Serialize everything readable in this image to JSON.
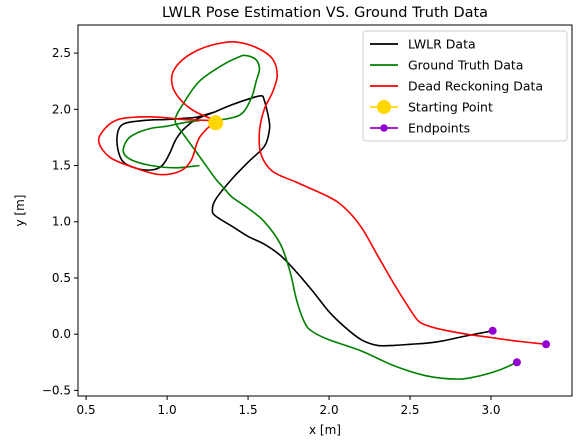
{
  "chart_data": {
    "type": "line",
    "title": "LWLR Pose Estimation VS. Ground Truth Data",
    "xlabel": "x [m]",
    "ylabel": "y [m]",
    "xlim": [
      0.45,
      3.5
    ],
    "ylim": [
      -0.55,
      2.75
    ],
    "xticks": [
      0.5,
      1.0,
      1.5,
      2.0,
      2.5,
      3.0
    ],
    "xtick_labels": [
      "0.5",
      "1.0",
      "1.5",
      "2.0",
      "2.5",
      "3.0"
    ],
    "yticks": [
      -0.5,
      0.0,
      0.5,
      1.0,
      1.5,
      2.0,
      2.5
    ],
    "ytick_labels": [
      "−0.5",
      "0.0",
      "0.5",
      "1.0",
      "1.5",
      "2.0",
      "2.5"
    ],
    "grid": false,
    "legend_position": "top-right",
    "series": [
      {
        "name": "LWLR Data",
        "color": "#000000",
        "x": [
          1.3,
          1.4,
          1.5,
          1.58,
          1.6,
          1.63,
          1.63,
          1.6,
          1.5,
          1.4,
          1.3,
          1.28,
          1.3,
          1.4,
          1.5,
          1.6,
          1.7,
          1.8,
          1.9,
          2.0,
          2.1,
          2.2,
          2.3,
          2.4,
          2.5,
          2.6,
          2.7,
          2.8,
          2.9,
          3.01
        ],
        "y": [
          1.98,
          2.04,
          2.09,
          2.12,
          2.08,
          1.9,
          1.8,
          1.67,
          1.53,
          1.38,
          1.2,
          1.1,
          1.05,
          0.96,
          0.87,
          0.8,
          0.7,
          0.55,
          0.38,
          0.2,
          0.06,
          -0.05,
          -0.1,
          -0.1,
          -0.09,
          -0.08,
          -0.06,
          -0.03,
          0.0,
          0.03
        ],
        "loop_x": [
          1.3,
          1.18,
          1.1,
          1.05,
          1.02,
          0.97,
          0.9,
          0.8,
          0.72,
          0.69,
          0.72,
          0.85,
          1.0,
          1.1,
          1.18,
          1.3
        ],
        "loop_y": [
          1.98,
          1.91,
          1.82,
          1.72,
          1.62,
          1.5,
          1.46,
          1.48,
          1.55,
          1.72,
          1.86,
          1.9,
          1.91,
          1.92,
          1.93,
          1.98
        ]
      },
      {
        "name": "Ground Truth Data",
        "color": "#008000",
        "x": [
          1.3,
          1.45,
          1.52,
          1.55,
          1.57,
          1.56,
          1.53,
          1.48,
          1.45,
          1.35,
          1.2,
          1.1,
          1.05,
          1.1,
          1.15,
          1.2,
          1.25,
          1.3,
          1.35,
          1.4,
          1.5,
          1.6,
          1.7,
          1.76,
          1.8,
          1.85,
          1.9,
          2.0,
          2.2,
          2.4,
          2.6,
          2.78,
          2.9,
          3.05,
          3.16
        ],
        "y": [
          1.9,
          1.95,
          2.1,
          2.25,
          2.35,
          2.42,
          2.46,
          2.48,
          2.47,
          2.4,
          2.25,
          2.05,
          1.9,
          1.78,
          1.68,
          1.58,
          1.48,
          1.38,
          1.3,
          1.22,
          1.12,
          1.0,
          0.8,
          0.55,
          0.3,
          0.1,
          0.02,
          -0.05,
          -0.15,
          -0.28,
          -0.37,
          -0.4,
          -0.38,
          -0.32,
          -0.25
        ],
        "loop_x": [
          1.2,
          1.1,
          1.0,
          0.9,
          0.8,
          0.75,
          0.73,
          0.78,
          0.9,
          1.05,
          1.2
        ],
        "loop_y": [
          1.9,
          1.88,
          1.85,
          1.83,
          1.78,
          1.72,
          1.62,
          1.55,
          1.5,
          1.48,
          1.5
        ]
      },
      {
        "name": "Dead Reckoning Data",
        "color": "#ff0000",
        "x": [
          1.3,
          1.15,
          1.05,
          1.03,
          1.08,
          1.18,
          1.3,
          1.42,
          1.55,
          1.65,
          1.68,
          1.65,
          1.6,
          1.57,
          1.58,
          1.65,
          1.8,
          2.0,
          2.1,
          2.2,
          2.3,
          2.4,
          2.5,
          2.55,
          2.6,
          2.7,
          2.85,
          3.0,
          3.15,
          3.34
        ],
        "y": [
          1.9,
          2.0,
          2.15,
          2.3,
          2.42,
          2.52,
          2.58,
          2.6,
          2.55,
          2.45,
          2.3,
          2.15,
          2.0,
          1.8,
          1.6,
          1.45,
          1.35,
          1.22,
          1.12,
          0.95,
          0.7,
          0.45,
          0.22,
          0.12,
          0.08,
          0.04,
          0.0,
          -0.03,
          -0.06,
          -0.09
        ],
        "loop_x": [
          1.3,
          1.1,
          0.95,
          0.8,
          0.68,
          0.6,
          0.58,
          0.65,
          0.8,
          0.95,
          1.08,
          1.15,
          1.2,
          1.3
        ],
        "loop_y": [
          1.9,
          1.91,
          1.93,
          1.93,
          1.9,
          1.8,
          1.7,
          1.57,
          1.48,
          1.42,
          1.45,
          1.55,
          1.75,
          1.9
        ]
      },
      {
        "name": "Starting Point",
        "color": "#ffd700",
        "x": [
          1.3
        ],
        "y": [
          1.88
        ]
      },
      {
        "name": "Endpoints",
        "color": "#9400d3",
        "x": [
          3.01,
          3.16,
          3.34
        ],
        "y": [
          0.03,
          -0.25,
          -0.09
        ]
      }
    ]
  }
}
